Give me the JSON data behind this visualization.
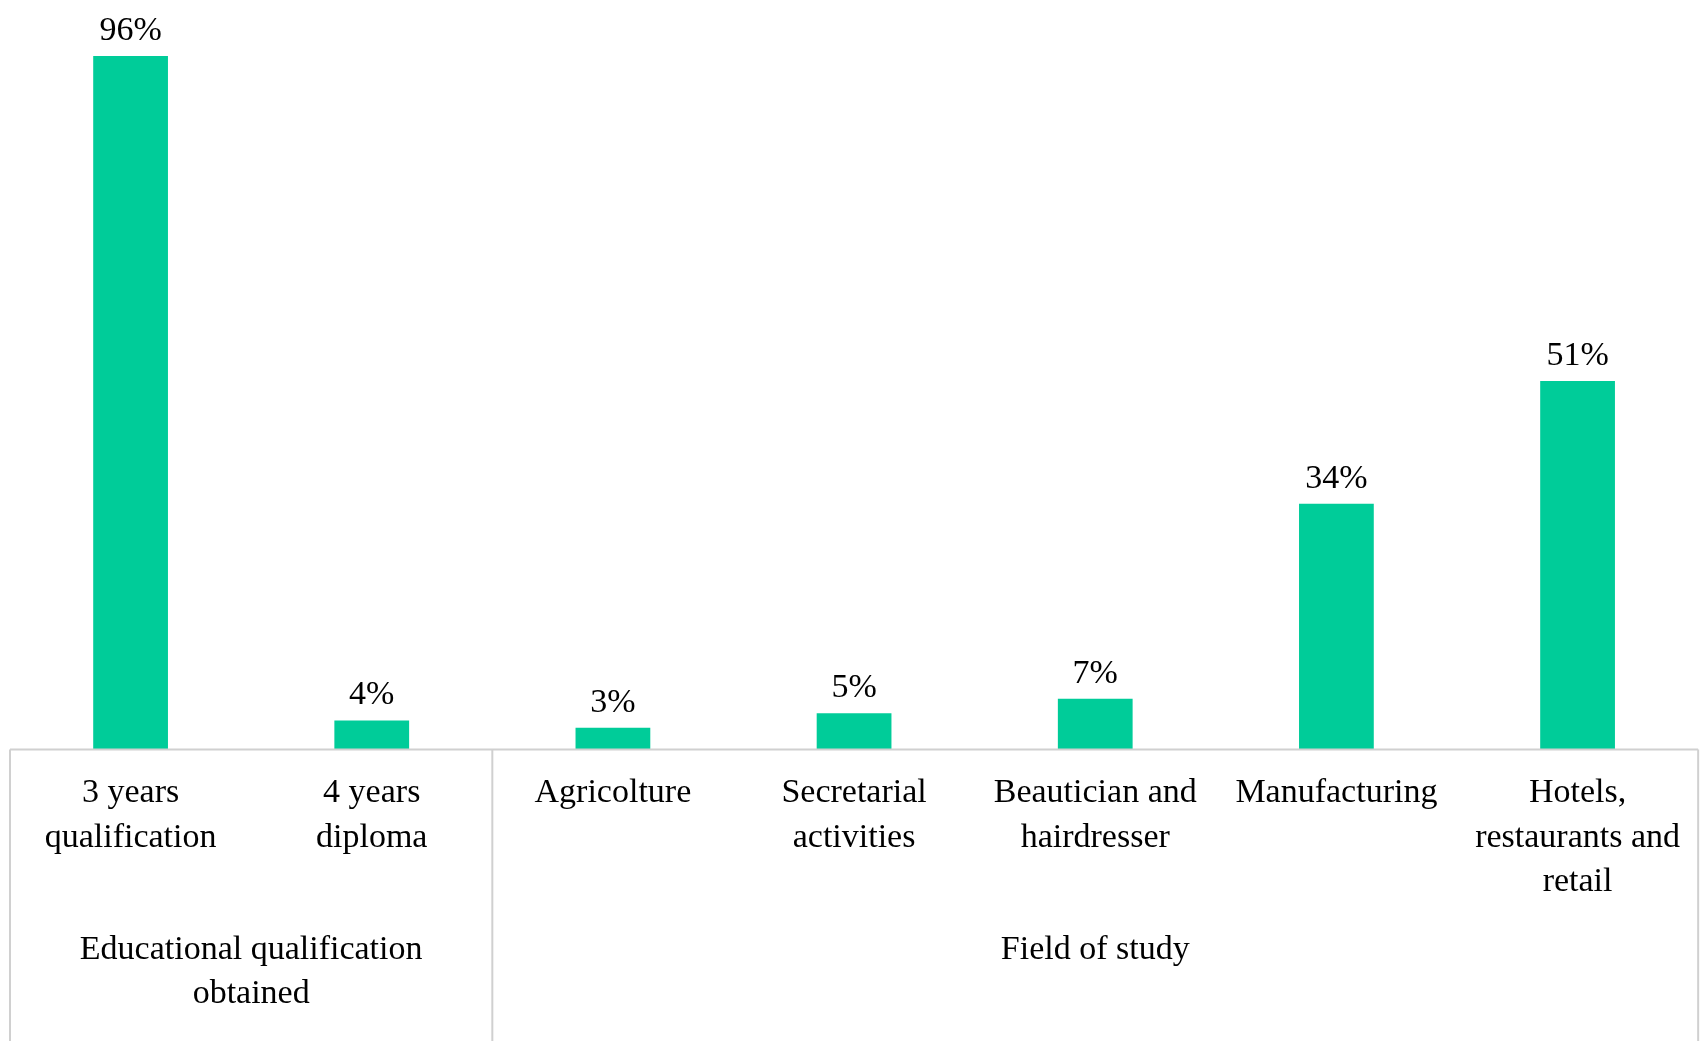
{
  "chart_data": {
    "type": "bar",
    "categories": [
      "3 years qualification",
      "4 years diploma",
      "Agricolture",
      "Secretarial activities",
      "Beautician and hairdresser",
      "Manufacturing",
      "Hotels, restaurants and retail"
    ],
    "values": [
      96,
      4,
      3,
      5,
      7,
      34,
      51
    ],
    "value_labels": [
      "96%",
      "4%",
      "3%",
      "5%",
      "7%",
      "34%",
      "51%"
    ],
    "color": "#00cc99",
    "grid": false,
    "legend": false,
    "tick_labels": "x",
    "annotations": [
      "Educational qualification obtained",
      "Field of study"
    ]
  }
}
